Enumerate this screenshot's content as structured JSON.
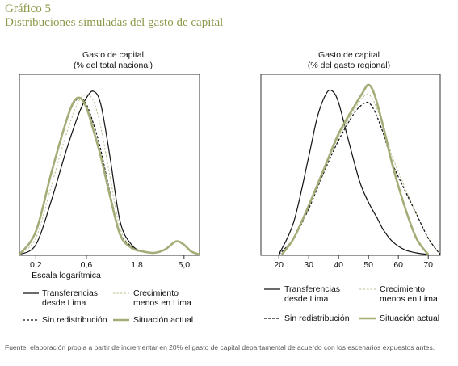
{
  "figure": {
    "title": "Gráfico 5",
    "subtitle": "Distribuciones simuladas del gasto de capital",
    "source": "Fuente: elaboración propia a partir de incrementar en 20% el gasto de capital departamental de acuerdo con los escenarios expuestos antes."
  },
  "colors": {
    "series_dark": "#111111",
    "series_olive": "#a3ad78",
    "series_olive_light": "#b9c093",
    "frame": "#333333"
  },
  "legend": {
    "items": [
      {
        "key": "transferencias",
        "line1": "Transferencias",
        "line2": "desde Lima",
        "style": "solid-dark"
      },
      {
        "key": "crecimiento",
        "line1": "Crecimiento",
        "line2": "menos en Lima",
        "style": "dashed-olive"
      },
      {
        "key": "sin_redistribucion",
        "line1": "Sin redistribución",
        "line2": "",
        "style": "dashed-dark"
      },
      {
        "key": "situacion_actual",
        "line1": "Situación actual",
        "line2": "",
        "style": "thick-olive"
      }
    ]
  },
  "chart_data": [
    {
      "type": "line",
      "title_line1": "Gasto de capital",
      "title_line2": "(% del total nacional)",
      "xlabel": "Escala logarítmica",
      "x_scale": "log",
      "xlim": [
        0.14,
        7.0
      ],
      "ylim": [
        0,
        1.0
      ],
      "x_ticks": [
        0.2,
        0.6,
        1.8,
        5.0
      ],
      "x_tick_labels": [
        "0,2",
        "0,6",
        "1,8",
        "5,0"
      ],
      "grid": false,
      "series": [
        {
          "key": "transferencias",
          "x": [
            0.14,
            0.2,
            0.28,
            0.38,
            0.5,
            0.6,
            0.7,
            0.82,
            1.0,
            1.25,
            1.6,
            2.0,
            2.6,
            3.3,
            4.2,
            5.0,
            5.8,
            7.0
          ],
          "y": [
            0.0,
            0.06,
            0.33,
            0.62,
            0.85,
            0.96,
            1.0,
            0.92,
            0.6,
            0.2,
            0.06,
            0.02,
            0.01,
            0.03,
            0.08,
            0.06,
            0.02,
            0.0
          ]
        },
        {
          "key": "crecimiento",
          "x": [
            0.14,
            0.2,
            0.28,
            0.38,
            0.5,
            0.6,
            0.7,
            0.82,
            1.0,
            1.25,
            1.6,
            2.0,
            2.6,
            3.3,
            4.2,
            5.0,
            5.8,
            7.0
          ],
          "y": [
            0.0,
            0.1,
            0.42,
            0.72,
            0.93,
            0.98,
            0.94,
            0.78,
            0.48,
            0.16,
            0.05,
            0.02,
            0.01,
            0.03,
            0.08,
            0.06,
            0.02,
            0.0
          ]
        },
        {
          "key": "sin_redistribucion",
          "x": [
            0.14,
            0.2,
            0.28,
            0.38,
            0.45,
            0.52,
            0.6,
            0.7,
            0.82,
            1.0,
            1.25,
            1.6,
            2.0,
            2.6,
            3.3,
            4.2,
            5.0,
            5.8,
            7.0
          ],
          "y": [
            0.0,
            0.14,
            0.5,
            0.8,
            0.92,
            0.96,
            0.92,
            0.8,
            0.64,
            0.38,
            0.13,
            0.05,
            0.02,
            0.01,
            0.03,
            0.08,
            0.06,
            0.02,
            0.0
          ]
        },
        {
          "key": "situacion_actual",
          "x": [
            0.14,
            0.2,
            0.28,
            0.38,
            0.45,
            0.52,
            0.6,
            0.7,
            0.82,
            1.0,
            1.25,
            1.6,
            2.0,
            2.6,
            3.3,
            4.2,
            5.0,
            5.8,
            7.0
          ],
          "y": [
            0.0,
            0.14,
            0.5,
            0.8,
            0.93,
            0.96,
            0.9,
            0.76,
            0.6,
            0.36,
            0.12,
            0.04,
            0.02,
            0.01,
            0.03,
            0.08,
            0.06,
            0.02,
            0.0
          ]
        }
      ]
    },
    {
      "type": "line",
      "title_line1": "Gasto de capital",
      "title_line2": "(% del gasto regional)",
      "xlabel": "",
      "x_scale": "linear",
      "xlim": [
        14,
        74
      ],
      "ylim": [
        0,
        1.0
      ],
      "x_ticks": [
        20,
        30,
        40,
        50,
        60,
        70
      ],
      "x_tick_labels": [
        "20",
        "30",
        "40",
        "50",
        "60",
        "70"
      ],
      "grid": false,
      "series": [
        {
          "key": "transferencias",
          "x": [
            20,
            25,
            30,
            33,
            36,
            38,
            40,
            43,
            47,
            50,
            53,
            55,
            58,
            62,
            66,
            70
          ],
          "y": [
            0.0,
            0.2,
            0.6,
            0.85,
            0.99,
            1.0,
            0.93,
            0.72,
            0.45,
            0.32,
            0.22,
            0.15,
            0.08,
            0.03,
            0.01,
            0.0
          ]
        },
        {
          "key": "crecimiento",
          "x": [
            21,
            25,
            30,
            35,
            40,
            45,
            48,
            50,
            52,
            55,
            58,
            62,
            66,
            70,
            74
          ],
          "y": [
            0.0,
            0.1,
            0.3,
            0.52,
            0.72,
            0.88,
            0.96,
            0.98,
            0.93,
            0.78,
            0.6,
            0.42,
            0.25,
            0.1,
            0.0
          ]
        },
        {
          "key": "sin_redistribucion",
          "x": [
            20,
            25,
            30,
            35,
            40,
            45,
            48,
            50,
            52,
            55,
            58,
            62,
            66,
            70,
            74
          ],
          "y": [
            0.0,
            0.1,
            0.28,
            0.5,
            0.7,
            0.86,
            0.92,
            0.93,
            0.88,
            0.74,
            0.56,
            0.4,
            0.25,
            0.1,
            0.0
          ]
        },
        {
          "key": "situacion_actual",
          "x": [
            21,
            25,
            30,
            35,
            40,
            45,
            48,
            50,
            52,
            55,
            58,
            62,
            66,
            70
          ],
          "y": [
            0.0,
            0.1,
            0.3,
            0.52,
            0.74,
            0.9,
            0.99,
            1.04,
            0.98,
            0.78,
            0.55,
            0.3,
            0.1,
            0.0
          ]
        }
      ]
    }
  ]
}
